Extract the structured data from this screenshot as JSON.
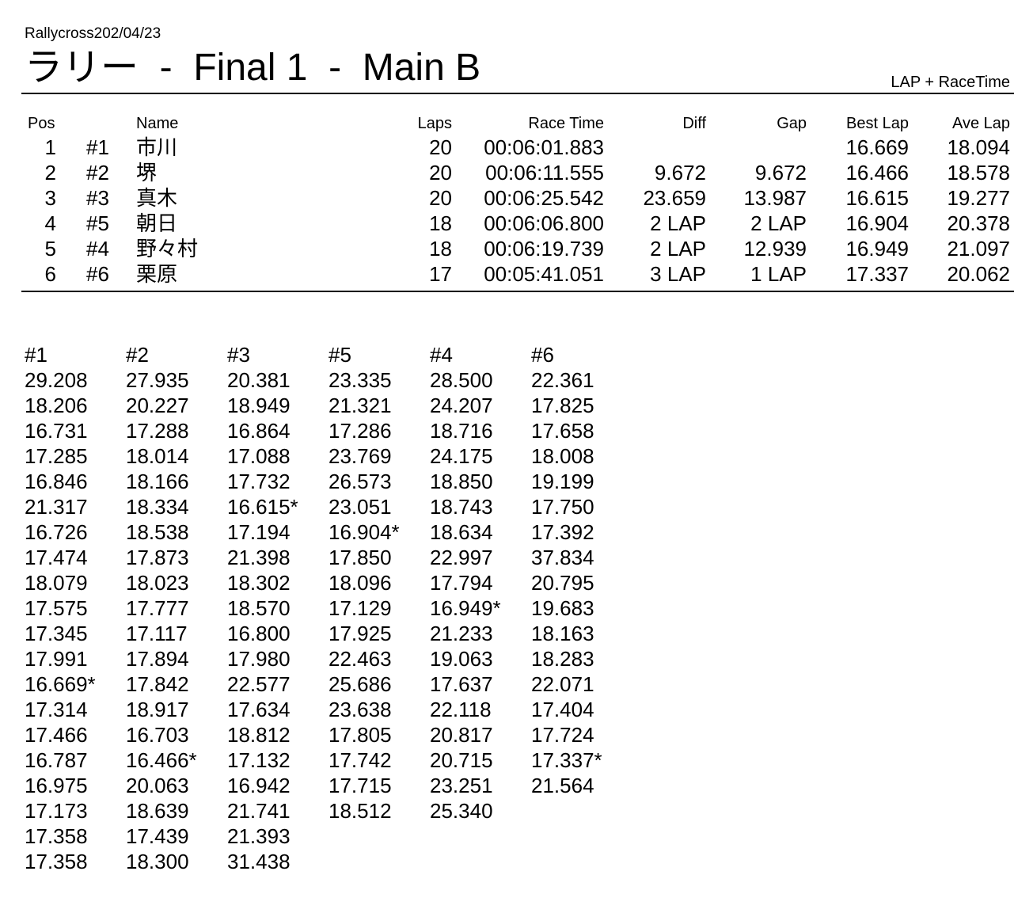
{
  "header": {
    "event": "Rallycross202/04/23",
    "title": "ラリー  -  Final 1  -  Main B",
    "mode": "LAP + RaceTime"
  },
  "results": {
    "headers": {
      "pos": "Pos",
      "name": "Name",
      "laps": "Laps",
      "race_time": "Race Time",
      "diff": "Diff",
      "gap": "Gap",
      "best_lap": "Best Lap",
      "ave_lap": "Ave Lap"
    },
    "rows": [
      {
        "pos": 1,
        "no": "#1",
        "name": "市川",
        "laps": 20,
        "race_time": "00:06:01.883",
        "best_lap": "16.669",
        "ave_lap": "18.094"
      },
      {
        "pos": 2,
        "no": "#2",
        "name": "堺",
        "laps": 20,
        "race_time": "00:06:11.555",
        "diff": "9.672",
        "gap": "9.672",
        "best_lap": "16.466",
        "ave_lap": "18.578"
      },
      {
        "pos": 3,
        "no": "#3",
        "name": "真木",
        "laps": 20,
        "race_time": "00:06:25.542",
        "diff": "23.659",
        "gap": "13.987",
        "best_lap": "16.615",
        "ave_lap": "19.277"
      },
      {
        "pos": 4,
        "no": "#5",
        "name": "朝日",
        "laps": 18,
        "race_time": "00:06:06.800",
        "diff": "2 LAP",
        "gap": "2 LAP",
        "best_lap": "16.904",
        "ave_lap": "20.378"
      },
      {
        "pos": 5,
        "no": "#4",
        "name": "野々村",
        "laps": 18,
        "race_time": "00:06:19.739",
        "diff": "2 LAP",
        "gap": "12.939",
        "best_lap": "16.949",
        "ave_lap": "21.097"
      },
      {
        "pos": 6,
        "no": "#6",
        "name": "栗原",
        "laps": 17,
        "race_time": "00:05:41.051",
        "diff": "3 LAP",
        "gap": "1 LAP",
        "best_lap": "17.337",
        "ave_lap": "20.062"
      }
    ]
  },
  "laps": [
    {
      "header": "#1",
      "times": [
        "29.208",
        "18.206",
        "16.731",
        "17.285",
        "16.846",
        "21.317",
        "16.726",
        "17.474",
        "18.079",
        "17.575",
        "17.345",
        "17.991",
        "16.669*",
        "17.314",
        "17.466",
        "16.787",
        "16.975",
        "17.173",
        "17.358",
        "17.358"
      ]
    },
    {
      "header": "#2",
      "times": [
        "27.935",
        "20.227",
        "17.288",
        "18.014",
        "18.166",
        "18.334",
        "18.538",
        "17.873",
        "18.023",
        "17.777",
        "17.117",
        "17.894",
        "17.842",
        "18.917",
        "16.703",
        "16.466*",
        "20.063",
        "18.639",
        "17.439",
        "18.300"
      ]
    },
    {
      "header": "#3",
      "times": [
        "20.381",
        "18.949",
        "16.864",
        "17.088",
        "17.732",
        "16.615*",
        "17.194",
        "21.398",
        "18.302",
        "18.570",
        "16.800",
        "17.980",
        "22.577",
        "17.634",
        "18.812",
        "17.132",
        "16.942",
        "21.741",
        "21.393",
        "31.438"
      ]
    },
    {
      "header": "#5",
      "times": [
        "23.335",
        "21.321",
        "17.286",
        "23.769",
        "26.573",
        "23.051",
        "16.904*",
        "17.850",
        "18.096",
        "17.129",
        "17.925",
        "22.463",
        "25.686",
        "23.638",
        "17.805",
        "17.742",
        "17.715",
        "18.512"
      ]
    },
    {
      "header": "#4",
      "times": [
        "28.500",
        "24.207",
        "18.716",
        "24.175",
        "18.850",
        "18.743",
        "18.634",
        "22.997",
        "17.794",
        "16.949*",
        "21.233",
        "19.063",
        "17.637",
        "22.118",
        "20.817",
        "20.715",
        "23.251",
        "25.340"
      ]
    },
    {
      "header": "#6",
      "times": [
        "22.361",
        "17.825",
        "17.658",
        "18.008",
        "19.199",
        "17.750",
        "17.392",
        "37.834",
        "20.795",
        "19.683",
        "18.163",
        "18.283",
        "22.071",
        "17.404",
        "17.724",
        "17.337*",
        "21.564"
      ]
    }
  ]
}
